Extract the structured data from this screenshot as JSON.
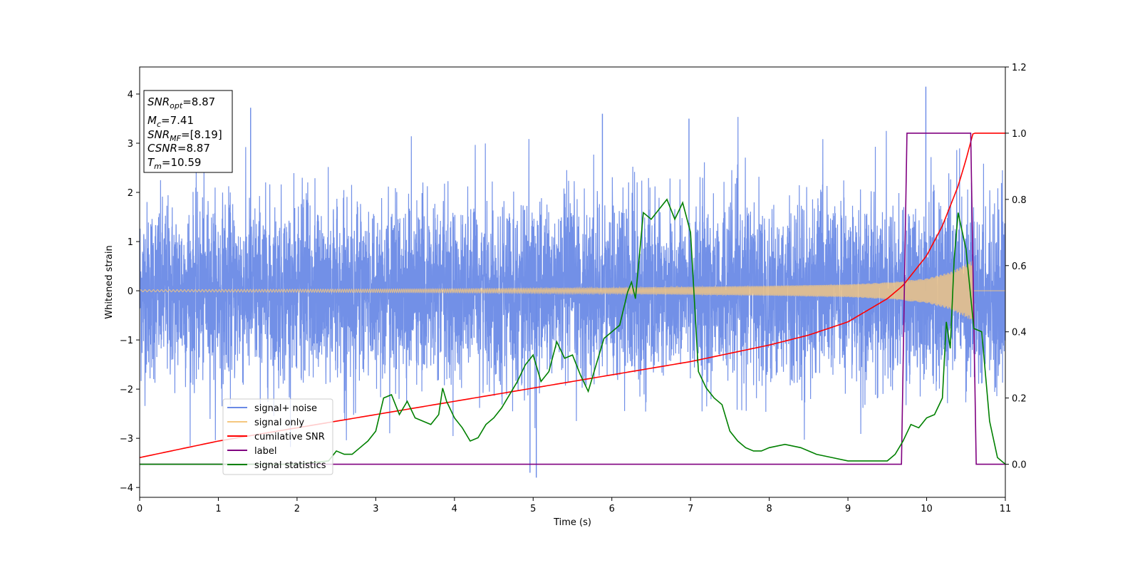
{
  "chart_data": {
    "type": "line",
    "xlabel": "Time (s)",
    "ylabel": "Whitened strain",
    "xlim": [
      0,
      11
    ],
    "ylim": [
      -4.2,
      4.55
    ],
    "y2lim": [
      -0.1,
      1.2
    ],
    "x_ticks": [
      "0",
      "1",
      "2",
      "3",
      "4",
      "5",
      "6",
      "7",
      "8",
      "9",
      "10",
      "11"
    ],
    "y_ticks": [
      "−4",
      "−3",
      "−2",
      "−1",
      "0",
      "1",
      "2",
      "3",
      "4"
    ],
    "y2_ticks": [
      "0.0",
      "0.2",
      "0.4",
      "0.6",
      "0.8",
      "1.0",
      "1.2"
    ],
    "grid": false,
    "legend_position": "lower-left",
    "info_box": {
      "snr_opt": {
        "symbol": "SNR",
        "sub": "opt",
        "value": "=8.87"
      },
      "mc": {
        "symbol": "M",
        "sub": "c",
        "value": "=7.41"
      },
      "snr_mf": {
        "symbol": "SNR",
        "sub": "MF",
        "value": "=[8.19]"
      },
      "csnr": {
        "symbol": "CSNR",
        "sub": "",
        "value": "=8.87"
      },
      "tm": {
        "symbol": "T",
        "sub": "m",
        "value": "=10.59"
      }
    },
    "series": [
      {
        "name": "signal+ noise",
        "color": "#6a8ae6",
        "axis": "left",
        "description_values": {
          "amplitude_std": 0.9,
          "max_peak": 4.15,
          "min_peak": -3.8
        }
      },
      {
        "name": "signal only",
        "color": "#f5c77f",
        "axis": "left",
        "envelope": {
          "t": [
            0,
            2,
            4,
            6,
            7,
            8,
            9,
            9.5,
            10,
            10.3,
            10.59
          ],
          "amp": [
            0.02,
            0.03,
            0.04,
            0.06,
            0.08,
            0.1,
            0.13,
            0.17,
            0.25,
            0.38,
            0.62
          ]
        }
      },
      {
        "name": "cumilative SNR",
        "color": "#ff0000",
        "axis": "right",
        "x": [
          0,
          1,
          2,
          3,
          4,
          5,
          6,
          7,
          8,
          8.5,
          9,
          9.5,
          9.7,
          10,
          10.2,
          10.4,
          10.5,
          10.59,
          11
        ],
        "y": [
          0.02,
          0.07,
          0.11,
          0.15,
          0.19,
          0.23,
          0.27,
          0.31,
          0.36,
          0.39,
          0.43,
          0.5,
          0.54,
          0.63,
          0.72,
          0.84,
          0.92,
          1.0,
          1.0
        ]
      },
      {
        "name": "label",
        "color": "#800080",
        "axis": "right",
        "x": [
          0,
          9.68,
          9.75,
          10.56,
          10.63,
          11
        ],
        "y": [
          0.0,
          0.0,
          1.0,
          1.0,
          0.0,
          0.0
        ]
      },
      {
        "name": "signal statistics",
        "color": "#008000",
        "axis": "right",
        "x": [
          0,
          0.5,
          1,
          1.5,
          2,
          2.4,
          2.5,
          2.6,
          2.7,
          2.8,
          2.9,
          3.0,
          3.1,
          3.2,
          3.3,
          3.4,
          3.5,
          3.6,
          3.7,
          3.8,
          3.85,
          3.9,
          4.0,
          4.1,
          4.2,
          4.3,
          4.4,
          4.5,
          4.6,
          4.7,
          4.8,
          4.9,
          5.0,
          5.1,
          5.2,
          5.3,
          5.4,
          5.5,
          5.6,
          5.7,
          5.8,
          5.9,
          6.0,
          6.1,
          6.2,
          6.25,
          6.3,
          6.4,
          6.5,
          6.6,
          6.7,
          6.8,
          6.9,
          7.0,
          7.1,
          7.2,
          7.3,
          7.4,
          7.5,
          7.6,
          7.7,
          7.8,
          7.9,
          8.0,
          8.2,
          8.4,
          8.6,
          8.8,
          9.0,
          9.2,
          9.4,
          9.5,
          9.6,
          9.7,
          9.8,
          9.9,
          10.0,
          10.1,
          10.2,
          10.25,
          10.3,
          10.35,
          10.4,
          10.5,
          10.6,
          10.7,
          10.8,
          10.9,
          11.0
        ],
        "y": [
          0.0,
          0.0,
          0.0,
          0.0,
          0.0,
          0.01,
          0.04,
          0.03,
          0.03,
          0.05,
          0.07,
          0.1,
          0.2,
          0.21,
          0.15,
          0.19,
          0.14,
          0.13,
          0.12,
          0.15,
          0.23,
          0.19,
          0.14,
          0.11,
          0.07,
          0.08,
          0.12,
          0.14,
          0.17,
          0.21,
          0.25,
          0.3,
          0.33,
          0.25,
          0.28,
          0.37,
          0.32,
          0.33,
          0.27,
          0.22,
          0.3,
          0.38,
          0.4,
          0.42,
          0.52,
          0.55,
          0.5,
          0.76,
          0.74,
          0.77,
          0.8,
          0.74,
          0.79,
          0.7,
          0.28,
          0.23,
          0.2,
          0.18,
          0.1,
          0.07,
          0.05,
          0.04,
          0.04,
          0.05,
          0.06,
          0.05,
          0.03,
          0.02,
          0.01,
          0.01,
          0.01,
          0.01,
          0.03,
          0.07,
          0.12,
          0.11,
          0.14,
          0.15,
          0.2,
          0.43,
          0.35,
          0.62,
          0.76,
          0.65,
          0.41,
          0.4,
          0.13,
          0.02,
          0.0
        ]
      }
    ]
  }
}
